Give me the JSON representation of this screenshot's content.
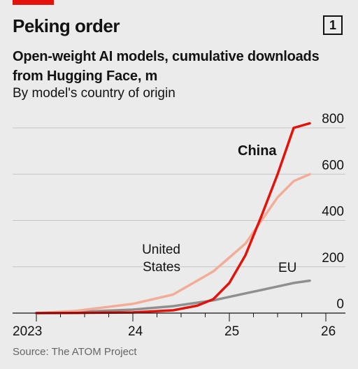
{
  "header": {
    "chart_number": "1"
  },
  "footer": {
    "source": "Source: The ATOM Project"
  },
  "colors": {
    "china": "#e3120b",
    "united_states": "#f2ac98",
    "eu": "#8f8f8f",
    "accent": "#e3120b"
  },
  "chart_data": {
    "type": "line",
    "title": "Peking order",
    "subtitle": "Open-weight AI models, cumulative downloads from Hugging Face, m",
    "description": "By model's country of origin",
    "xlabel": "",
    "ylabel": "",
    "x_tick_labels": [
      "2023",
      "24",
      "25",
      "26"
    ],
    "y_ticks": [
      0,
      200,
      400,
      600,
      800
    ],
    "ylim": [
      0,
      800
    ],
    "grid": true,
    "series": [
      {
        "name": "China",
        "color": "#e3120b",
        "x": [
          "2023-01",
          "2023-06",
          "2024-01",
          "2024-06",
          "2024-09",
          "2024-11",
          "2025-01",
          "2025-03",
          "2025-05",
          "2025-07",
          "2025-09",
          "2025-11"
        ],
        "values": [
          0,
          1,
          3,
          12,
          32,
          60,
          130,
          250,
          420,
          600,
          800,
          820
        ]
      },
      {
        "name": "United States",
        "color": "#f2ac98",
        "x": [
          "2023-01",
          "2023-06",
          "2024-01",
          "2024-06",
          "2024-09",
          "2024-11",
          "2025-01",
          "2025-03",
          "2025-05",
          "2025-07",
          "2025-09",
          "2025-11"
        ],
        "values": [
          0,
          10,
          40,
          80,
          140,
          180,
          240,
          300,
          400,
          500,
          570,
          600
        ]
      },
      {
        "name": "EU",
        "color": "#8f8f8f",
        "x": [
          "2023-01",
          "2023-06",
          "2024-01",
          "2024-06",
          "2024-09",
          "2024-11",
          "2025-01",
          "2025-03",
          "2025-05",
          "2025-07",
          "2025-09",
          "2025-11"
        ],
        "values": [
          0,
          5,
          15,
          30,
          45,
          55,
          70,
          85,
          100,
          115,
          130,
          140
        ]
      }
    ]
  }
}
